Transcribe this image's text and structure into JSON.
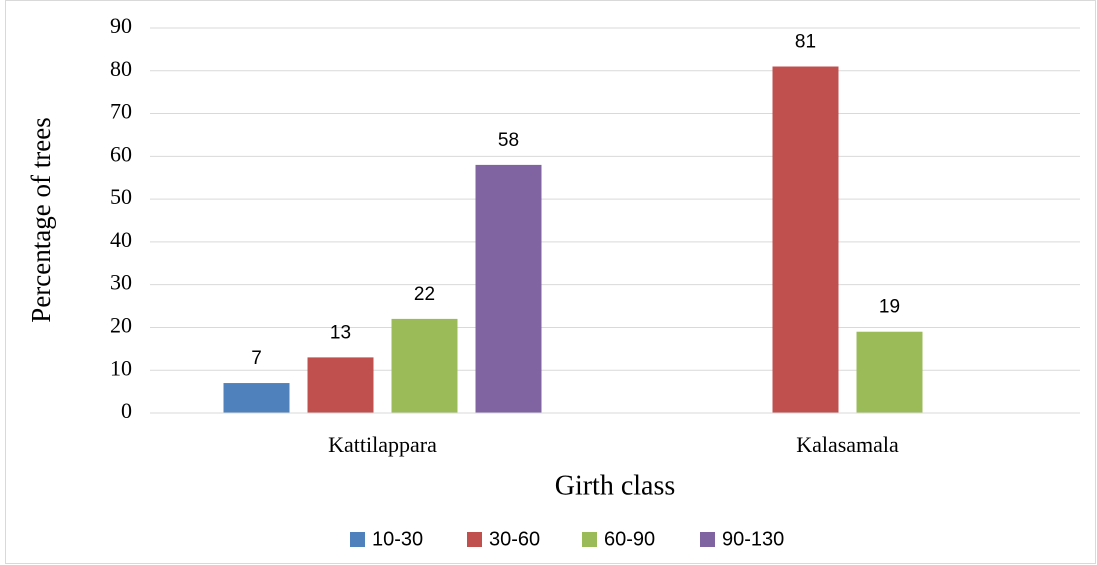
{
  "chart_data": {
    "type": "bar",
    "y_label": "Percentage of trees",
    "x_label": "Girth class",
    "categories": [
      "Kattilappara",
      "Kalasamala"
    ],
    "series": [
      {
        "name": "10-30",
        "color": "#4f81bd",
        "values": [
          7,
          null
        ]
      },
      {
        "name": "30-60",
        "color": "#c0504d",
        "values": [
          13,
          81
        ]
      },
      {
        "name": "60-90",
        "color": "#9bbb59",
        "values": [
          22,
          19
        ]
      },
      {
        "name": "90-130",
        "color": "#8064a2",
        "values": [
          58,
          null
        ]
      }
    ],
    "ylim": [
      0,
      90
    ],
    "yticks": [
      0,
      10,
      20,
      30,
      40,
      50,
      60,
      70,
      80,
      90
    ],
    "grid": true,
    "legend": "bottom"
  }
}
